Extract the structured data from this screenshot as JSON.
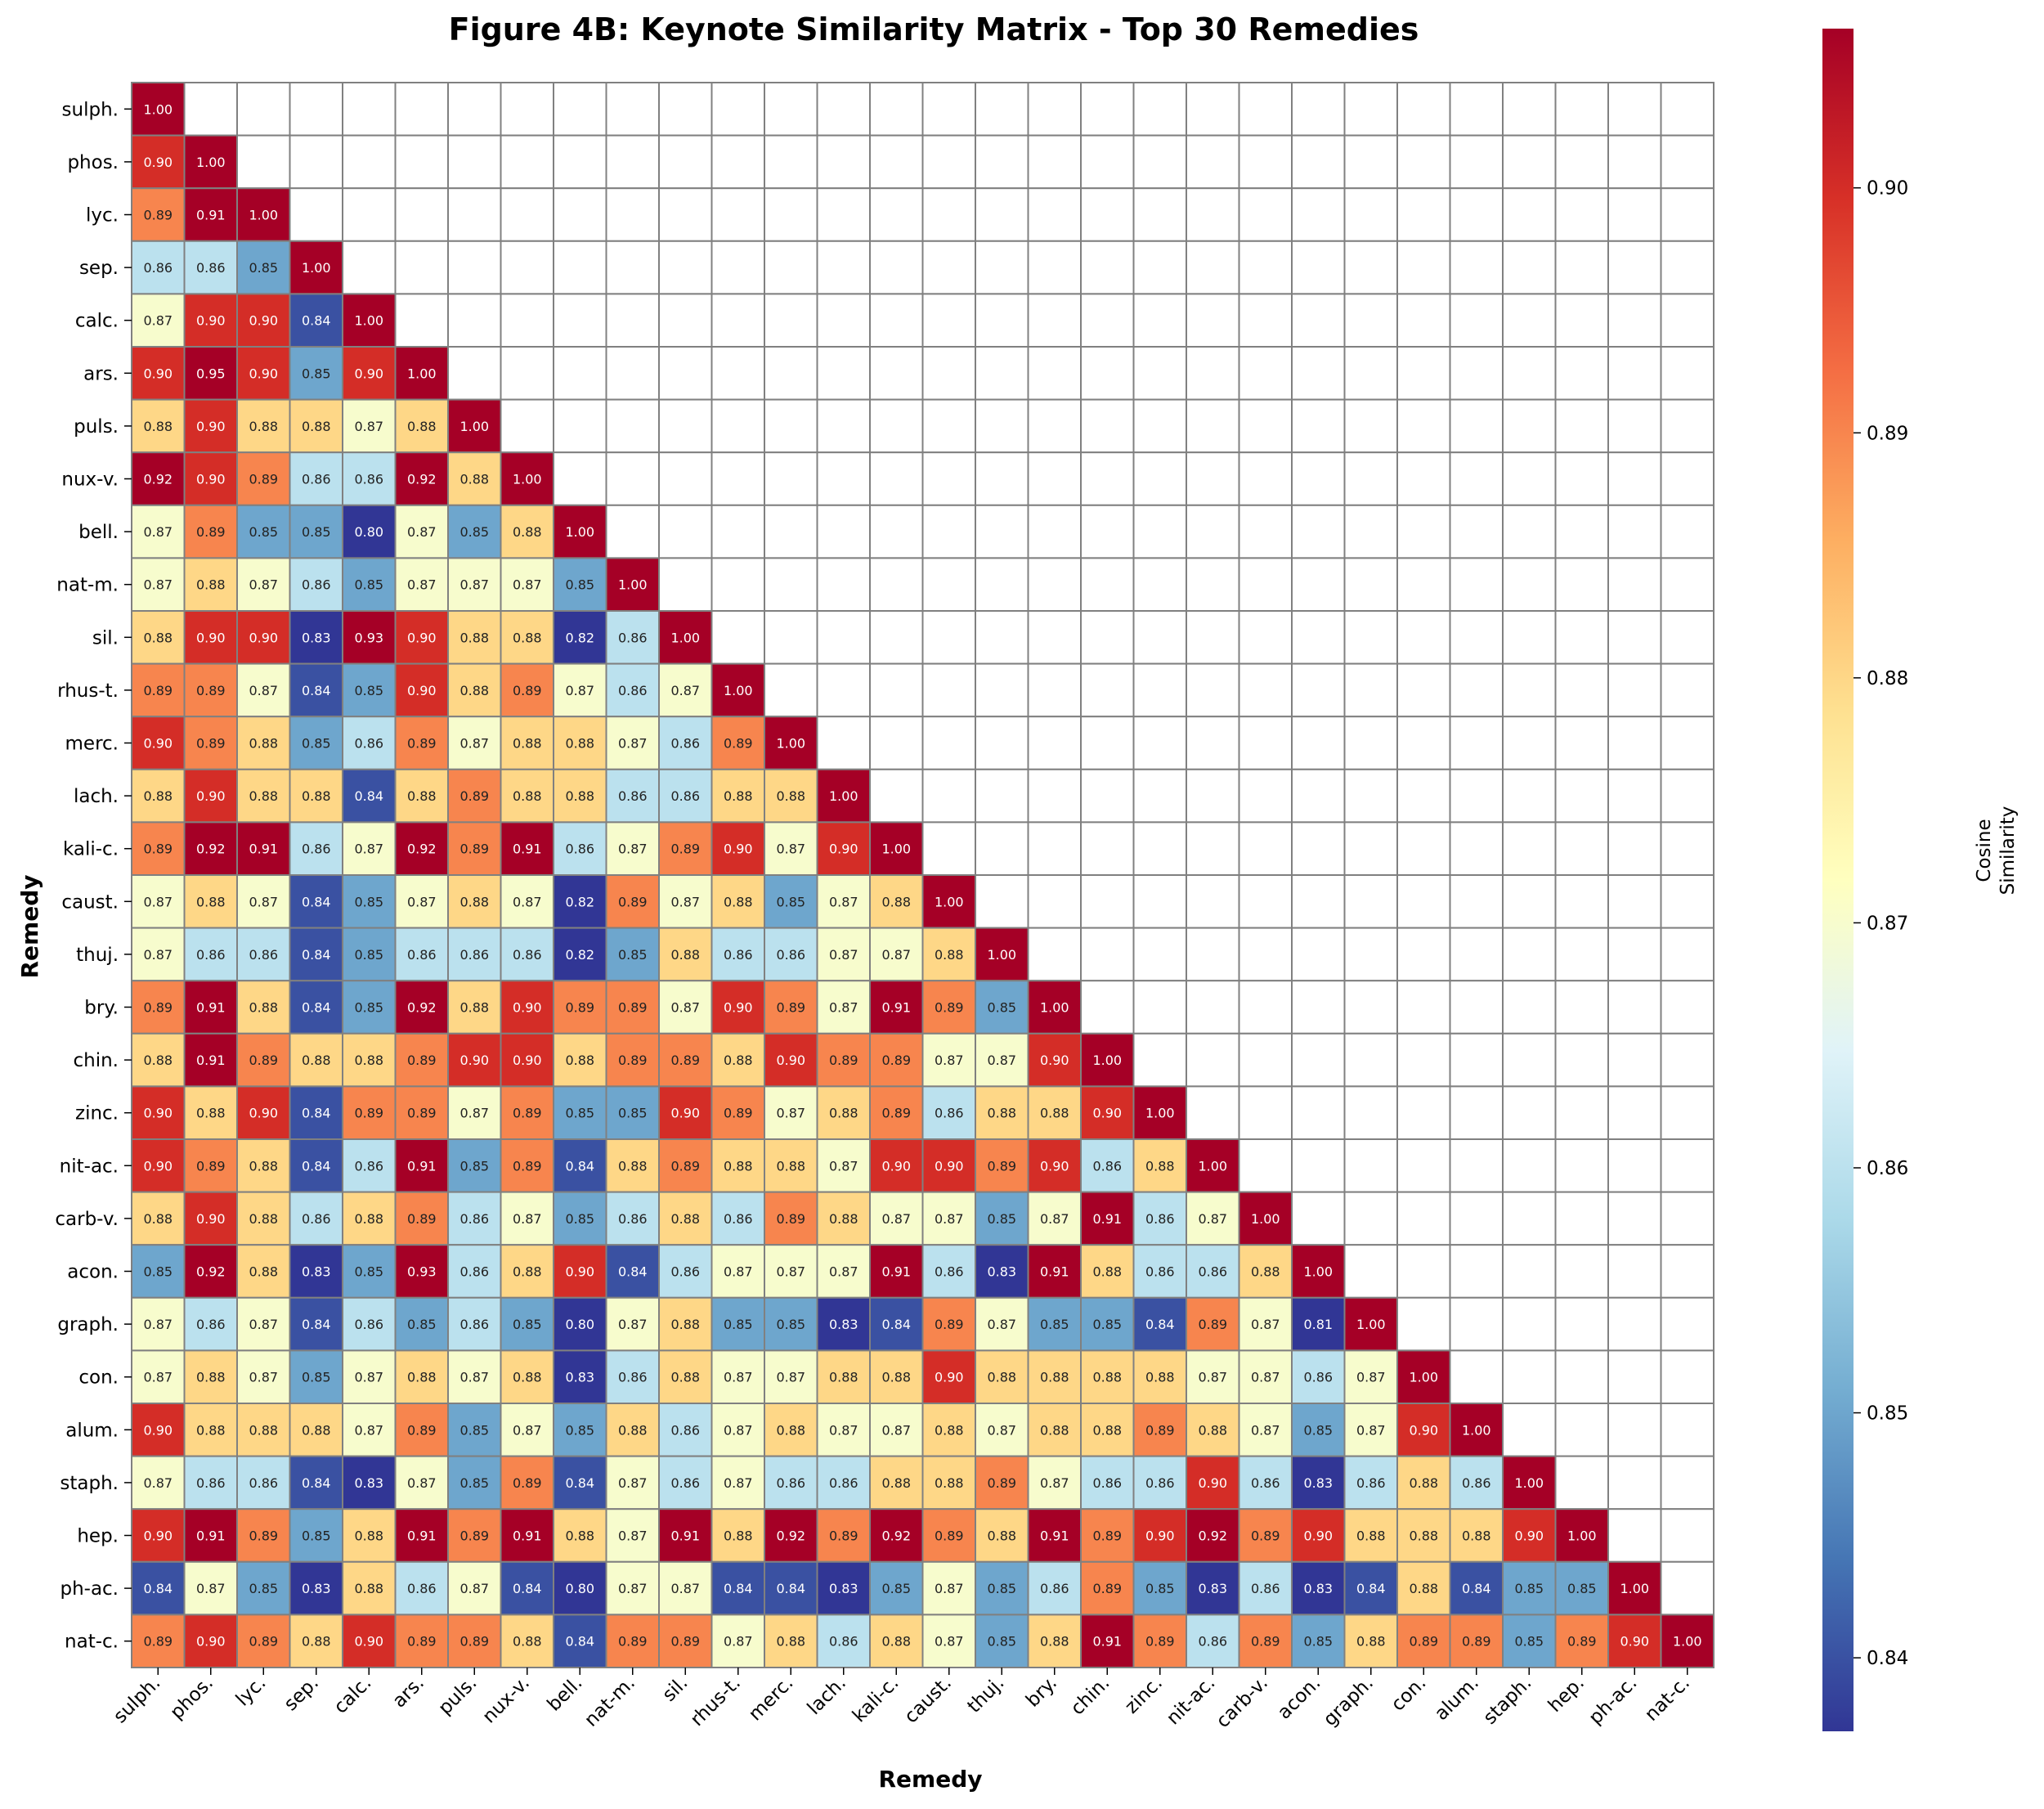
{
  "chart_data": {
    "type": "heatmap",
    "title": "Figure 4B: Keynote Similarity Matrix - Top 30 Remedies",
    "xlabel": "Remedy",
    "ylabel": "Remedy",
    "colorbar_label": [
      "Cosine",
      "Similarity"
    ],
    "colorbar_range": [
      0.837,
      0.9065
    ],
    "colorbar_ticks": [
      0.84,
      0.85,
      0.86,
      0.87,
      0.88,
      0.89,
      0.9
    ],
    "colorbar_tick_labels": [
      "0.84",
      "0.85",
      "0.86",
      "0.87",
      "0.88",
      "0.89",
      "0.90"
    ],
    "colormap": "RdYlBu_r",
    "mask": "upper-triangle",
    "remedies": [
      "sulph.",
      "phos.",
      "lyc.",
      "sep.",
      "calc.",
      "ars.",
      "puls.",
      "nux-v.",
      "bell.",
      "nat-m.",
      "sil.",
      "rhus-t.",
      "merc.",
      "lach.",
      "kali-c.",
      "caust.",
      "thuj.",
      "bry.",
      "chin.",
      "zinc.",
      "nit-ac.",
      "carb-v.",
      "acon.",
      "graph.",
      "con.",
      "alum.",
      "staph.",
      "hep.",
      "ph-ac.",
      "nat-c."
    ],
    "matrix": [
      [
        1.0
      ],
      [
        0.9,
        1.0
      ],
      [
        0.89,
        0.91,
        1.0
      ],
      [
        0.86,
        0.86,
        0.85,
        1.0
      ],
      [
        0.87,
        0.9,
        0.9,
        0.84,
        1.0
      ],
      [
        0.9,
        0.95,
        0.9,
        0.85,
        0.9,
        1.0
      ],
      [
        0.88,
        0.9,
        0.88,
        0.88,
        0.87,
        0.88,
        1.0
      ],
      [
        0.92,
        0.9,
        0.89,
        0.86,
        0.86,
        0.92,
        0.88,
        1.0
      ],
      [
        0.87,
        0.89,
        0.85,
        0.85,
        0.8,
        0.87,
        0.85,
        0.88,
        1.0
      ],
      [
        0.87,
        0.88,
        0.87,
        0.86,
        0.85,
        0.87,
        0.87,
        0.87,
        0.85,
        1.0
      ],
      [
        0.88,
        0.9,
        0.9,
        0.83,
        0.93,
        0.9,
        0.88,
        0.88,
        0.82,
        0.86,
        1.0
      ],
      [
        0.89,
        0.89,
        0.87,
        0.84,
        0.85,
        0.9,
        0.88,
        0.89,
        0.87,
        0.86,
        0.87,
        1.0
      ],
      [
        0.9,
        0.89,
        0.88,
        0.85,
        0.86,
        0.89,
        0.87,
        0.88,
        0.88,
        0.87,
        0.86,
        0.89,
        1.0
      ],
      [
        0.88,
        0.9,
        0.88,
        0.88,
        0.84,
        0.88,
        0.89,
        0.88,
        0.88,
        0.86,
        0.86,
        0.88,
        0.88,
        1.0
      ],
      [
        0.89,
        0.92,
        0.91,
        0.86,
        0.87,
        0.92,
        0.89,
        0.91,
        0.86,
        0.87,
        0.89,
        0.9,
        0.87,
        0.9,
        1.0
      ],
      [
        0.87,
        0.88,
        0.87,
        0.84,
        0.85,
        0.87,
        0.88,
        0.87,
        0.82,
        0.89,
        0.87,
        0.88,
        0.85,
        0.87,
        0.88,
        1.0
      ],
      [
        0.87,
        0.86,
        0.86,
        0.84,
        0.85,
        0.86,
        0.86,
        0.86,
        0.82,
        0.85,
        0.88,
        0.86,
        0.86,
        0.87,
        0.87,
        0.88,
        1.0
      ],
      [
        0.89,
        0.91,
        0.88,
        0.84,
        0.85,
        0.92,
        0.88,
        0.9,
        0.89,
        0.89,
        0.87,
        0.9,
        0.89,
        0.87,
        0.91,
        0.89,
        0.85,
        1.0
      ],
      [
        0.88,
        0.91,
        0.89,
        0.88,
        0.88,
        0.89,
        0.9,
        0.9,
        0.88,
        0.89,
        0.89,
        0.88,
        0.9,
        0.89,
        0.89,
        0.87,
        0.87,
        0.9,
        1.0
      ],
      [
        0.9,
        0.88,
        0.9,
        0.84,
        0.89,
        0.89,
        0.87,
        0.89,
        0.85,
        0.85,
        0.9,
        0.89,
        0.87,
        0.88,
        0.89,
        0.86,
        0.88,
        0.88,
        0.9,
        1.0
      ],
      [
        0.9,
        0.89,
        0.88,
        0.84,
        0.86,
        0.91,
        0.85,
        0.89,
        0.84,
        0.88,
        0.89,
        0.88,
        0.88,
        0.87,
        0.9,
        0.9,
        0.89,
        0.9,
        0.86,
        0.88,
        1.0
      ],
      [
        0.88,
        0.9,
        0.88,
        0.86,
        0.88,
        0.89,
        0.86,
        0.87,
        0.85,
        0.86,
        0.88,
        0.86,
        0.89,
        0.88,
        0.87,
        0.87,
        0.85,
        0.87,
        0.91,
        0.86,
        0.87,
        1.0
      ],
      [
        0.85,
        0.92,
        0.88,
        0.83,
        0.85,
        0.93,
        0.86,
        0.88,
        0.9,
        0.84,
        0.86,
        0.87,
        0.87,
        0.87,
        0.91,
        0.86,
        0.83,
        0.91,
        0.88,
        0.86,
        0.86,
        0.88,
        1.0
      ],
      [
        0.87,
        0.86,
        0.87,
        0.84,
        0.86,
        0.85,
        0.86,
        0.85,
        0.8,
        0.87,
        0.88,
        0.85,
        0.85,
        0.83,
        0.84,
        0.89,
        0.87,
        0.85,
        0.85,
        0.84,
        0.89,
        0.87,
        0.81,
        1.0
      ],
      [
        0.87,
        0.88,
        0.87,
        0.85,
        0.87,
        0.88,
        0.87,
        0.88,
        0.83,
        0.86,
        0.88,
        0.87,
        0.87,
        0.88,
        0.88,
        0.9,
        0.88,
        0.88,
        0.88,
        0.88,
        0.87,
        0.87,
        0.86,
        0.87,
        1.0
      ],
      [
        0.9,
        0.88,
        0.88,
        0.88,
        0.87,
        0.89,
        0.85,
        0.87,
        0.85,
        0.88,
        0.86,
        0.87,
        0.88,
        0.87,
        0.87,
        0.88,
        0.87,
        0.88,
        0.88,
        0.89,
        0.88,
        0.87,
        0.85,
        0.87,
        0.9,
        1.0
      ],
      [
        0.87,
        0.86,
        0.86,
        0.84,
        0.83,
        0.87,
        0.85,
        0.89,
        0.84,
        0.87,
        0.86,
        0.87,
        0.86,
        0.86,
        0.88,
        0.88,
        0.89,
        0.87,
        0.86,
        0.86,
        0.9,
        0.86,
        0.83,
        0.86,
        0.88,
        0.86,
        1.0
      ],
      [
        0.9,
        0.91,
        0.89,
        0.85,
        0.88,
        0.91,
        0.89,
        0.91,
        0.88,
        0.87,
        0.91,
        0.88,
        0.92,
        0.89,
        0.92,
        0.89,
        0.88,
        0.91,
        0.89,
        0.9,
        0.92,
        0.89,
        0.9,
        0.88,
        0.88,
        0.88,
        0.9,
        1.0
      ],
      [
        0.84,
        0.87,
        0.85,
        0.83,
        0.88,
        0.86,
        0.87,
        0.84,
        0.8,
        0.87,
        0.87,
        0.84,
        0.84,
        0.83,
        0.85,
        0.87,
        0.85,
        0.86,
        0.89,
        0.85,
        0.83,
        0.86,
        0.83,
        0.84,
        0.88,
        0.84,
        0.85,
        0.85,
        1.0
      ],
      [
        0.89,
        0.9,
        0.89,
        0.88,
        0.9,
        0.89,
        0.89,
        0.88,
        0.84,
        0.89,
        0.89,
        0.87,
        0.88,
        0.86,
        0.88,
        0.87,
        0.85,
        0.88,
        0.91,
        0.89,
        0.86,
        0.89,
        0.85,
        0.88,
        0.89,
        0.89,
        0.85,
        0.89,
        0.9,
        1.0
      ]
    ]
  }
}
